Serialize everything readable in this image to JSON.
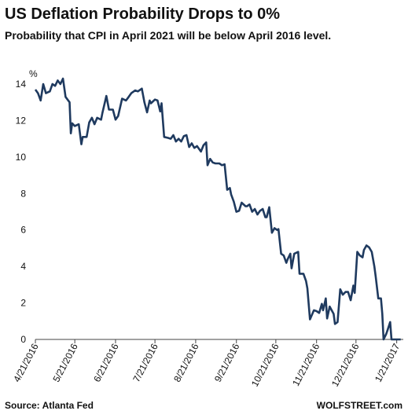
{
  "chart_data": {
    "type": "line",
    "title": "US Deflation Probability Drops to 0%",
    "subtitle": "Probability that CPI in April 2021 will be below April 2016 level.",
    "y_unit": "%",
    "source": "Source: Atlanta Fed",
    "credit": "WOLFSTREET.com",
    "color": "#1f3a5f",
    "grid": false,
    "x": [
      "2016-04-21",
      "2016-04-23",
      "2016-04-25",
      "2016-04-27",
      "2016-04-29",
      "2016-05-02",
      "2016-05-04",
      "2016-05-06",
      "2016-05-08",
      "2016-05-10",
      "2016-05-12",
      "2016-05-14",
      "2016-05-17",
      "2016-05-18",
      "2016-05-19",
      "2016-05-21",
      "2016-05-24",
      "2016-05-26",
      "2016-05-27",
      "2016-05-30",
      "2016-06-01",
      "2016-06-03",
      "2016-06-05",
      "2016-06-07",
      "2016-06-10",
      "2016-06-11",
      "2016-06-14",
      "2016-06-16",
      "2016-06-19",
      "2016-06-21",
      "2016-06-23",
      "2016-06-26",
      "2016-06-29",
      "2016-07-01",
      "2016-07-03",
      "2016-07-06",
      "2016-07-08",
      "2016-07-11",
      "2016-07-13",
      "2016-07-15",
      "2016-07-17",
      "2016-07-18",
      "2016-07-21",
      "2016-07-23",
      "2016-07-25",
      "2016-07-26",
      "2016-07-28",
      "2016-07-31",
      "2016-08-02",
      "2016-08-04",
      "2016-08-06",
      "2016-08-08",
      "2016-08-10",
      "2016-08-12",
      "2016-08-14",
      "2016-08-16",
      "2016-08-18",
      "2016-08-20",
      "2016-08-22",
      "2016-08-25",
      "2016-08-27",
      "2016-08-29",
      "2016-08-30",
      "2016-09-01",
      "2016-09-03",
      "2016-09-05",
      "2016-09-07",
      "2016-09-08",
      "2016-09-10",
      "2016-09-12",
      "2016-09-14",
      "2016-09-16",
      "2016-09-17",
      "2016-09-19",
      "2016-09-21",
      "2016-09-23",
      "2016-09-25",
      "2016-09-28",
      "2016-09-29",
      "2016-10-01",
      "2016-10-03",
      "2016-10-05",
      "2016-10-07",
      "2016-10-09",
      "2016-10-11",
      "2016-10-13",
      "2016-10-14",
      "2016-10-16",
      "2016-10-18",
      "2016-10-20",
      "2016-10-22",
      "2016-10-23",
      "2016-10-25",
      "2016-10-27",
      "2016-10-29",
      "2016-10-30",
      "2016-11-01",
      "2016-11-02",
      "2016-11-04",
      "2016-11-07",
      "2016-11-08",
      "2016-11-11",
      "2016-11-13",
      "2016-11-14",
      "2016-11-16",
      "2016-11-19",
      "2016-11-21",
      "2016-11-23",
      "2016-11-25",
      "2016-11-26",
      "2016-11-28",
      "2016-11-29",
      "2016-12-01",
      "2016-12-04",
      "2016-12-05",
      "2016-12-07",
      "2016-12-09",
      "2016-12-11",
      "2016-12-13",
      "2016-12-15",
      "2016-12-17",
      "2016-12-19",
      "2016-12-20",
      "2016-12-22",
      "2016-12-24",
      "2016-12-26",
      "2016-12-27",
      "2016-12-29",
      "2016-12-31",
      "2017-01-02",
      "2017-01-04",
      "2017-01-05",
      "2017-01-07",
      "2017-01-09",
      "2017-01-10",
      "2017-01-11",
      "2017-01-13",
      "2017-01-14",
      "2017-01-16",
      "2017-01-17",
      "2017-01-21",
      "2017-01-24"
    ],
    "values": [
      13.7,
      13.5,
      13.1,
      14.0,
      13.5,
      13.6,
      14.0,
      13.9,
      14.2,
      14.0,
      14.3,
      13.3,
      13.0,
      11.3,
      11.85,
      11.7,
      11.8,
      10.7,
      11.1,
      11.1,
      11.9,
      12.15,
      11.8,
      12.15,
      12.05,
      12.4,
      13.35,
      12.6,
      12.6,
      12.05,
      12.25,
      13.2,
      13.1,
      13.3,
      13.5,
      13.65,
      13.6,
      13.75,
      13.0,
      12.45,
      13.1,
      12.95,
      13.15,
      13.1,
      12.5,
      12.95,
      11.1,
      11.05,
      11.0,
      11.2,
      10.85,
      11.0,
      10.85,
      11.15,
      11.2,
      10.55,
      10.75,
      10.5,
      10.6,
      10.3,
      10.65,
      10.8,
      9.55,
      9.9,
      9.7,
      9.65,
      9.65,
      9.65,
      9.55,
      9.6,
      8.2,
      8.3,
      7.95,
      7.55,
      7.0,
      7.05,
      7.5,
      7.3,
      7.3,
      7.4,
      7.0,
      7.15,
      6.85,
      7.05,
      7.15,
      6.7,
      6.7,
      7.25,
      5.85,
      6.1,
      6.0,
      6.05,
      4.7,
      4.6,
      4.2,
      4.4,
      4.7,
      3.9,
      4.7,
      4.8,
      3.6,
      3.6,
      3.2,
      2.8,
      1.1,
      1.6,
      1.55,
      1.45,
      1.95,
      1.6,
      2.25,
      1.15,
      1.8,
      1.4,
      0.85,
      0.95,
      2.75,
      2.45,
      2.6,
      2.6,
      2.15,
      2.95,
      2.55,
      4.8,
      4.6,
      4.5,
      4.9,
      5.15,
      5.05,
      4.8,
      4.0,
      3.45,
      2.25,
      2.25,
      1.4,
      0,
      0.3,
      0.5,
      0.95,
      0,
      0,
      0
    ],
    "xlim": [
      "2016-04-21",
      "2017-01-26"
    ],
    "xticks": [
      {
        "value": "2016-04-21",
        "label": "4/21/2016"
      },
      {
        "value": "2016-05-21",
        "label": "5/21/2016"
      },
      {
        "value": "2016-06-21",
        "label": "6/21/2016"
      },
      {
        "value": "2016-07-21",
        "label": "7/21/2016"
      },
      {
        "value": "2016-08-21",
        "label": "8/21/2016"
      },
      {
        "value": "2016-09-21",
        "label": "9/21/2016"
      },
      {
        "value": "2016-10-21",
        "label": "10/21/2016"
      },
      {
        "value": "2016-11-21",
        "label": "11/21/2016"
      },
      {
        "value": "2016-12-21",
        "label": "12/21/2016"
      },
      {
        "value": "2017-01-21",
        "label": "1/21/2017"
      }
    ],
    "ylim": [
      0,
      14
    ],
    "yticks": [
      0,
      2,
      4,
      6,
      8,
      10,
      12,
      14
    ]
  }
}
